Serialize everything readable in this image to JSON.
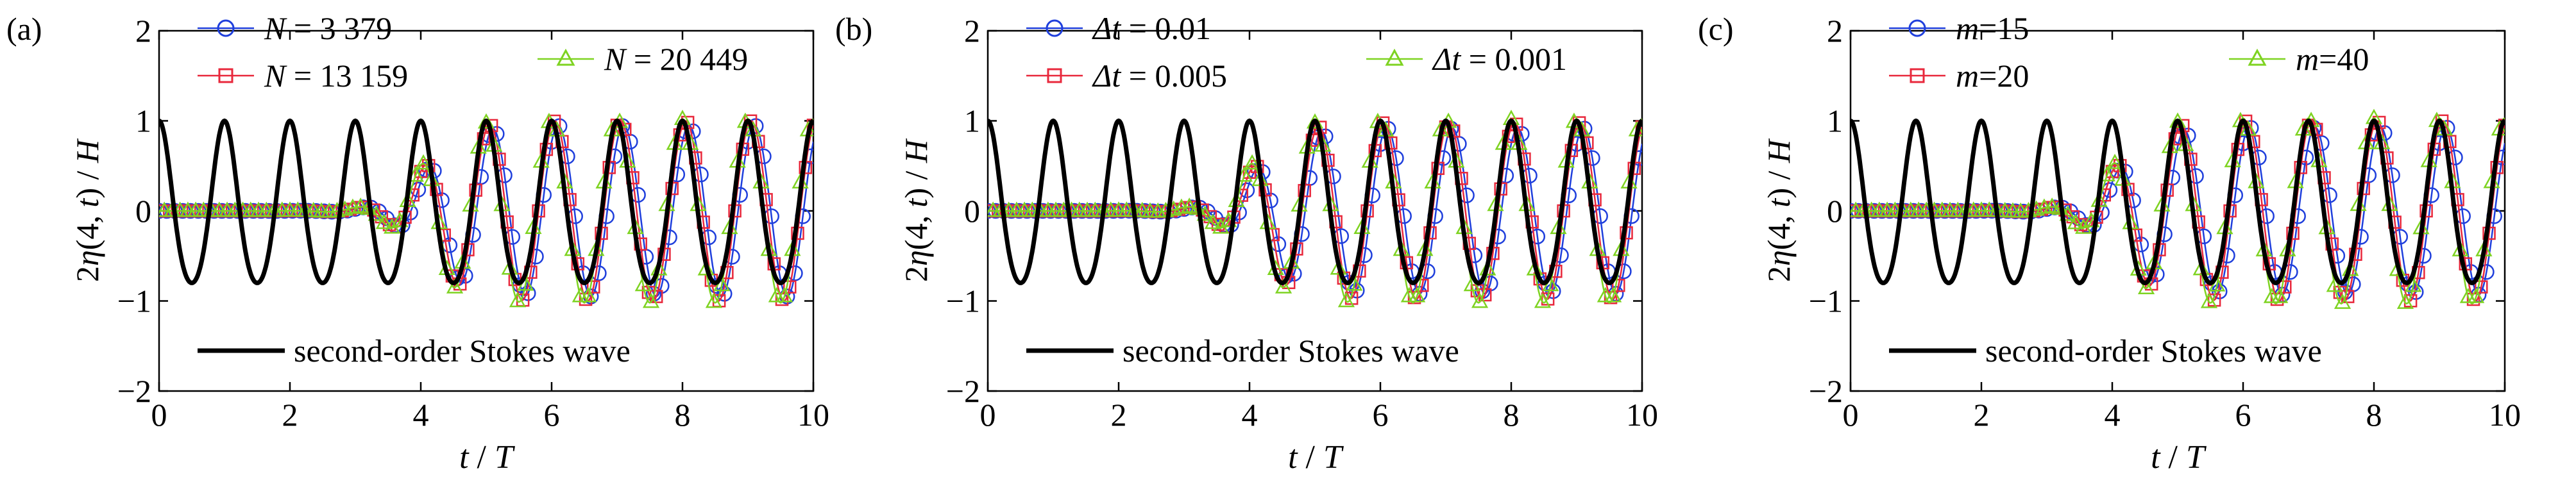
{
  "chart_data": [
    {
      "type": "line",
      "panel_label": "(a)",
      "xlabel": {
        "italic": "t",
        "sep": " / ",
        "italic2": "T"
      },
      "ylabel": {
        "prefix": "2",
        "eta": "η",
        "args": "(4, ",
        "t": "t",
        "close": ")",
        "sep": " / ",
        "H": "H"
      },
      "xlim": [
        0,
        10
      ],
      "ylim": [
        -2,
        2
      ],
      "xticks": [
        "0",
        "2",
        "4",
        "6",
        "8",
        "10"
      ],
      "yticks": [
        "−2",
        "−1",
        "0",
        "1",
        "2"
      ],
      "reference": {
        "name": "second-order Stokes wave",
        "color": "#000000",
        "period": 1,
        "amplitude": 1.0
      },
      "series": [
        {
          "name": "N = 3 379",
          "var": "N",
          "eq": " = ",
          "num": "3 379",
          "marker": "circle",
          "color": "#1f3fdc",
          "lag": 4.1,
          "amp": 0.95
        },
        {
          "name": "N = 13 159",
          "var": "N",
          "eq": " = ",
          "num": "13 159",
          "marker": "square",
          "color": "#e8283c",
          "lag": 4.05,
          "amp": 1.0
        },
        {
          "name": "N = 20 449",
          "var": "N",
          "eq": " = ",
          "num": "20 449",
          "marker": "triangle",
          "color": "#7ed321",
          "lag": 4.0,
          "amp": 1.02
        }
      ]
    },
    {
      "type": "line",
      "panel_label": "(b)",
      "xlabel": {
        "italic": "t",
        "sep": " / ",
        "italic2": "T"
      },
      "ylabel": {
        "prefix": "2",
        "eta": "η",
        "args": "(4, ",
        "t": "t",
        "close": ")",
        "sep": " / ",
        "H": "H"
      },
      "xlim": [
        0,
        10
      ],
      "ylim": [
        -2,
        2
      ],
      "xticks": [
        "0",
        "2",
        "4",
        "6",
        "8",
        "10"
      ],
      "yticks": [
        "−2",
        "−1",
        "0",
        "1",
        "2"
      ],
      "reference": {
        "name": "second-order Stokes wave",
        "color": "#000000",
        "period": 1,
        "amplitude": 1.0
      },
      "series": [
        {
          "name": "Δt = 0.01",
          "var": "Δt",
          "eq": " = ",
          "num": "0.01",
          "marker": "circle",
          "color": "#1f3fdc",
          "lag": 4.1,
          "amp": 0.92
        },
        {
          "name": "Δt = 0.005",
          "var": "Δt",
          "eq": " = ",
          "num": "0.005",
          "marker": "square",
          "color": "#e8283c",
          "lag": 4.05,
          "amp": 0.98
        },
        {
          "name": "Δt = 0.001",
          "var": "Δt",
          "eq": " = ",
          "num": "0.001",
          "marker": "triangle",
          "color": "#7ed321",
          "lag": 4.0,
          "amp": 1.02
        }
      ]
    },
    {
      "type": "line",
      "panel_label": "(c)",
      "xlabel": {
        "italic": "t",
        "sep": " / ",
        "italic2": "T"
      },
      "ylabel": {
        "prefix": "2",
        "eta": "η",
        "args": "(4, ",
        "t": "t",
        "close": ")",
        "sep": " / ",
        "H": "H"
      },
      "xlim": [
        0,
        10
      ],
      "ylim": [
        -2,
        2
      ],
      "xticks": [
        "0",
        "2",
        "4",
        "6",
        "8",
        "10"
      ],
      "yticks": [
        "−2",
        "−1",
        "0",
        "1",
        "2"
      ],
      "reference": {
        "name": "second-order Stokes wave",
        "color": "#000000",
        "period": 1,
        "amplitude": 1.0
      },
      "series": [
        {
          "name": "m=15",
          "var": "m",
          "eq": "=",
          "num": "15",
          "marker": "circle",
          "color": "#1f3fdc",
          "lag": 4.1,
          "amp": 0.93
        },
        {
          "name": "m=20",
          "var": "m",
          "eq": "=",
          "num": "20",
          "marker": "square",
          "color": "#e8283c",
          "lag": 4.05,
          "amp": 1.0
        },
        {
          "name": "m=40",
          "var": "m",
          "eq": "=",
          "num": "40",
          "marker": "triangle",
          "color": "#7ed321",
          "lag": 4.0,
          "amp": 1.03
        }
      ]
    }
  ]
}
